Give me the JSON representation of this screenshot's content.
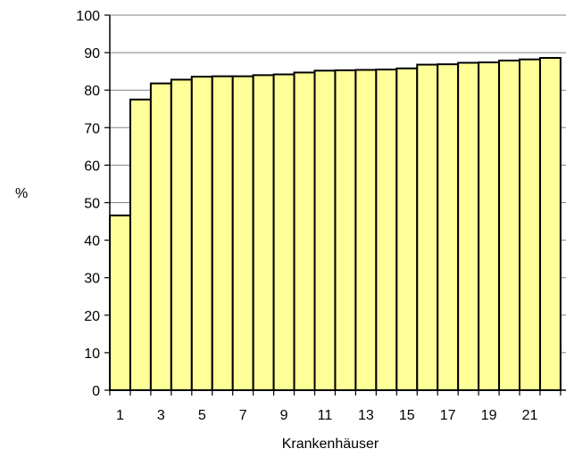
{
  "chart_data": {
    "type": "bar",
    "title": "",
    "xlabel": "Krankenhäuser",
    "ylabel": "%",
    "ylim": [
      0,
      100
    ],
    "yticks": [
      "0",
      "10",
      "20",
      "30",
      "40",
      "50",
      "60",
      "70",
      "80",
      "90",
      "100"
    ],
    "xtick_labels": [
      "1",
      "3",
      "5",
      "7",
      "9",
      "11",
      "13",
      "15",
      "17",
      "19",
      "21"
    ],
    "categories": [
      "1",
      "2",
      "3",
      "4",
      "5",
      "6",
      "7",
      "8",
      "9",
      "10",
      "11",
      "12",
      "13",
      "14",
      "15",
      "16",
      "17",
      "18",
      "19",
      "20",
      "21",
      "22"
    ],
    "values": [
      46.6,
      77.5,
      81.8,
      82.8,
      83.6,
      83.7,
      83.7,
      84.0,
      84.2,
      84.7,
      85.2,
      85.3,
      85.4,
      85.5,
      85.8,
      86.8,
      86.9,
      87.3,
      87.4,
      87.9,
      88.2,
      88.6
    ],
    "grid": "horizontal",
    "legend": "none",
    "colors": {
      "bar_fill": "#ffff99",
      "bar_stroke": "#000000",
      "grid": "#808080"
    }
  }
}
